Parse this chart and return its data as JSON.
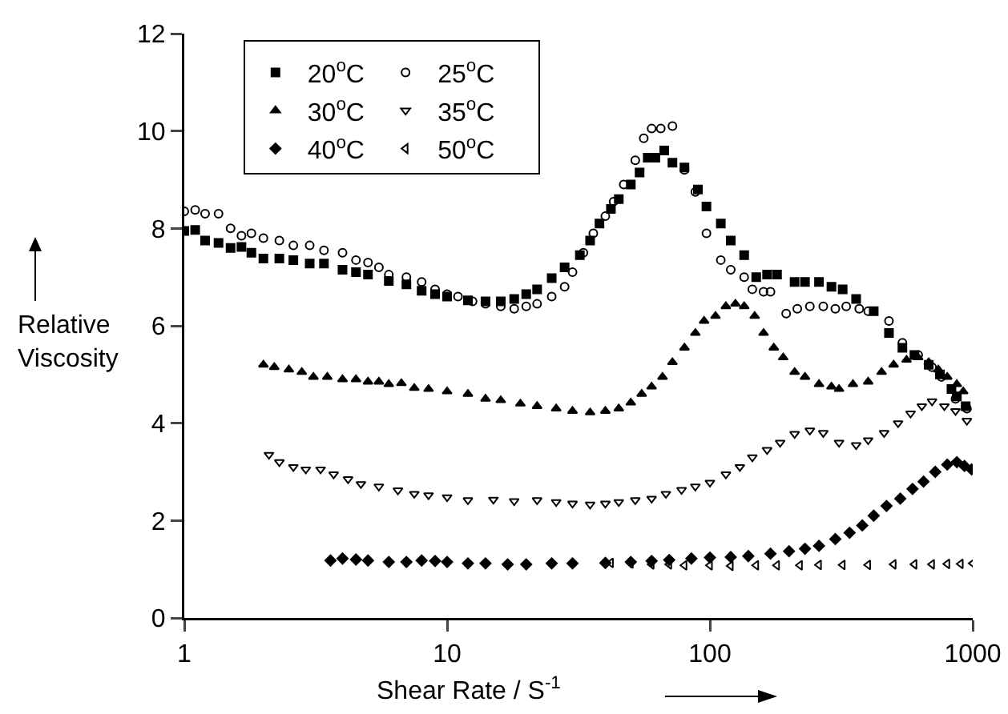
{
  "chart_data": {
    "type": "scatter",
    "xlabel": "Shear Rate / S$^{-1}$",
    "ylabel": "Relative Viscosity",
    "log": "x",
    "xlim": [
      1,
      1000
    ],
    "xticks": [
      1,
      10,
      100,
      1000
    ],
    "ylim": [
      0,
      12
    ],
    "yticks": [
      0,
      2,
      4,
      6,
      8,
      10,
      12
    ],
    "grid": false,
    "legend": "top left",
    "series": [
      {
        "name": "20$^{o}$C",
        "color": "#000000",
        "marker": "square",
        "x": [
          1,
          1.1,
          1.2,
          1.35,
          1.5,
          1.65,
          1.8,
          2,
          2.3,
          2.6,
          3,
          3.4,
          4,
          4.5,
          5,
          6,
          7,
          8,
          9,
          10,
          12,
          14,
          16,
          18,
          20,
          22,
          25,
          28,
          32,
          35,
          38,
          42,
          45,
          50,
          54,
          58,
          62,
          67,
          72,
          80,
          90,
          97,
          110,
          120,
          135,
          150,
          165,
          180,
          210,
          230,
          260,
          290,
          320,
          360,
          420,
          480,
          540,
          600,
          680,
          750,
          830,
          870,
          940
        ],
        "values": [
          7.95,
          7.97,
          7.75,
          7.7,
          7.6,
          7.62,
          7.5,
          7.38,
          7.38,
          7.35,
          7.28,
          7.28,
          7.15,
          7.1,
          7.05,
          6.92,
          6.85,
          6.72,
          6.65,
          6.6,
          6.52,
          6.5,
          6.5,
          6.55,
          6.65,
          6.75,
          6.98,
          7.2,
          7.45,
          7.75,
          8.1,
          8.4,
          8.6,
          8.9,
          9.15,
          9.45,
          9.45,
          9.6,
          9.35,
          9.25,
          8.8,
          8.45,
          8.1,
          7.75,
          7.45,
          7.0,
          7.05,
          7.05,
          6.9,
          6.9,
          6.9,
          6.8,
          6.75,
          6.55,
          6.3,
          5.85,
          5.55,
          5.4,
          5.2,
          5.0,
          4.7,
          4.55,
          4.35
        ]
      },
      {
        "name": "25$^{o}$C",
        "color": "#000000",
        "marker": "circle-open",
        "x": [
          1,
          1.1,
          1.2,
          1.35,
          1.5,
          1.65,
          1.8,
          2,
          2.3,
          2.6,
          3,
          3.4,
          4,
          4.5,
          5,
          5.5,
          6,
          7,
          8,
          9,
          10,
          11,
          12.5,
          14,
          16,
          18,
          20,
          22,
          25,
          28,
          30,
          33,
          36,
          40,
          43,
          47,
          52,
          56,
          60,
          65,
          72,
          80,
          88,
          97,
          110,
          120,
          135,
          145,
          160,
          170,
          195,
          215,
          240,
          270,
          300,
          330,
          370,
          400,
          480,
          540,
          620,
          700,
          760,
          860,
          950
        ],
        "values": [
          8.35,
          8.38,
          8.3,
          8.3,
          8.0,
          7.85,
          7.9,
          7.8,
          7.75,
          7.65,
          7.65,
          7.55,
          7.5,
          7.35,
          7.3,
          7.2,
          7.05,
          7.0,
          6.9,
          6.75,
          6.65,
          6.6,
          6.5,
          6.45,
          6.4,
          6.35,
          6.4,
          6.45,
          6.6,
          6.8,
          7.1,
          7.5,
          7.9,
          8.25,
          8.55,
          8.9,
          9.4,
          9.85,
          10.05,
          10.05,
          10.1,
          9.2,
          8.75,
          7.9,
          7.35,
          7.15,
          7.0,
          6.75,
          6.7,
          6.7,
          6.25,
          6.35,
          6.4,
          6.4,
          6.35,
          6.4,
          6.35,
          6.3,
          6.1,
          5.65,
          5.4,
          5.15,
          4.95,
          4.5,
          4.3
        ]
      },
      {
        "name": "30$^{o}$C",
        "color": "#000000",
        "marker": "triangle",
        "x": [
          2,
          2.2,
          2.5,
          2.8,
          3.1,
          3.5,
          4,
          4.5,
          5,
          5.5,
          6,
          6.7,
          7.5,
          8.5,
          10,
          12,
          14,
          16,
          19,
          22,
          26,
          30,
          35,
          40,
          45,
          50,
          55,
          60,
          66,
          72,
          80,
          88,
          95,
          105,
          115,
          125,
          135,
          148,
          160,
          175,
          190,
          210,
          230,
          260,
          290,
          310,
          350,
          400,
          450,
          500,
          560,
          620,
          680,
          740,
          800,
          870,
          920
        ],
        "values": [
          5.2,
          5.15,
          5.1,
          5.05,
          4.95,
          4.95,
          4.9,
          4.9,
          4.85,
          4.85,
          4.8,
          4.82,
          4.72,
          4.7,
          4.65,
          4.6,
          4.5,
          4.47,
          4.4,
          4.35,
          4.3,
          4.25,
          4.22,
          4.25,
          4.3,
          4.42,
          4.6,
          4.75,
          4.95,
          5.25,
          5.55,
          5.85,
          6.1,
          6.2,
          6.4,
          6.45,
          6.4,
          6.2,
          5.85,
          5.55,
          5.35,
          5.05,
          4.95,
          4.8,
          4.75,
          4.7,
          4.8,
          4.85,
          5.05,
          5.2,
          5.3,
          5.35,
          5.25,
          5.1,
          4.95,
          4.8,
          4.65
        ]
      },
      {
        "name": "35$^{o}$C",
        "color": "#000000",
        "marker": "triangle-down-open",
        "x": [
          2.1,
          2.3,
          2.6,
          2.9,
          3.3,
          3.7,
          4.2,
          4.7,
          5.5,
          6.5,
          7.5,
          8.5,
          10,
          12,
          15,
          18,
          22,
          26,
          30,
          35,
          40,
          45,
          52,
          60,
          68,
          78,
          88,
          100,
          115,
          130,
          145,
          165,
          185,
          210,
          240,
          270,
          310,
          360,
          400,
          460,
          520,
          580,
          640,
          700,
          780,
          860,
          950
        ],
        "values": [
          3.35,
          3.2,
          3.1,
          3.05,
          3.05,
          2.95,
          2.85,
          2.75,
          2.7,
          2.62,
          2.55,
          2.52,
          2.48,
          2.42,
          2.43,
          2.4,
          2.42,
          2.38,
          2.35,
          2.33,
          2.35,
          2.38,
          2.42,
          2.45,
          2.55,
          2.63,
          2.7,
          2.78,
          2.95,
          3.1,
          3.3,
          3.45,
          3.6,
          3.78,
          3.85,
          3.8,
          3.6,
          3.55,
          3.65,
          3.8,
          4.0,
          4.2,
          4.35,
          4.45,
          4.35,
          4.25,
          4.05
        ]
      },
      {
        "name": "40$^{o}$C",
        "color": "#000000",
        "marker": "diamond",
        "x": [
          3.6,
          4,
          4.5,
          5,
          6,
          7,
          8,
          9,
          10,
          12,
          14,
          17,
          20,
          25,
          30,
          40,
          50,
          60,
          70,
          85,
          100,
          120,
          140,
          170,
          200,
          230,
          260,
          300,
          340,
          380,
          420,
          470,
          530,
          590,
          650,
          720,
          800,
          870,
          930,
          990
        ],
        "values": [
          1.18,
          1.22,
          1.2,
          1.18,
          1.15,
          1.15,
          1.18,
          1.17,
          1.15,
          1.12,
          1.12,
          1.1,
          1.1,
          1.12,
          1.12,
          1.13,
          1.15,
          1.17,
          1.19,
          1.22,
          1.24,
          1.25,
          1.27,
          1.32,
          1.37,
          1.42,
          1.48,
          1.62,
          1.75,
          1.9,
          2.1,
          2.3,
          2.45,
          2.65,
          2.8,
          3.0,
          3.15,
          3.2,
          3.12,
          3.05
        ]
      },
      {
        "name": "50$^{o}$C",
        "color": "#000000",
        "marker": "triangle-left-open",
        "x": [
          42,
          50,
          60,
          70,
          80,
          100,
          120,
          150,
          180,
          220,
          260,
          320,
          400,
          500,
          600,
          700,
          800,
          900,
          1000
        ],
        "values": [
          1.13,
          1.12,
          1.1,
          1.1,
          1.08,
          1.08,
          1.07,
          1.08,
          1.08,
          1.08,
          1.09,
          1.09,
          1.09,
          1.1,
          1.1,
          1.1,
          1.11,
          1.11,
          1.12
        ]
      }
    ]
  }
}
